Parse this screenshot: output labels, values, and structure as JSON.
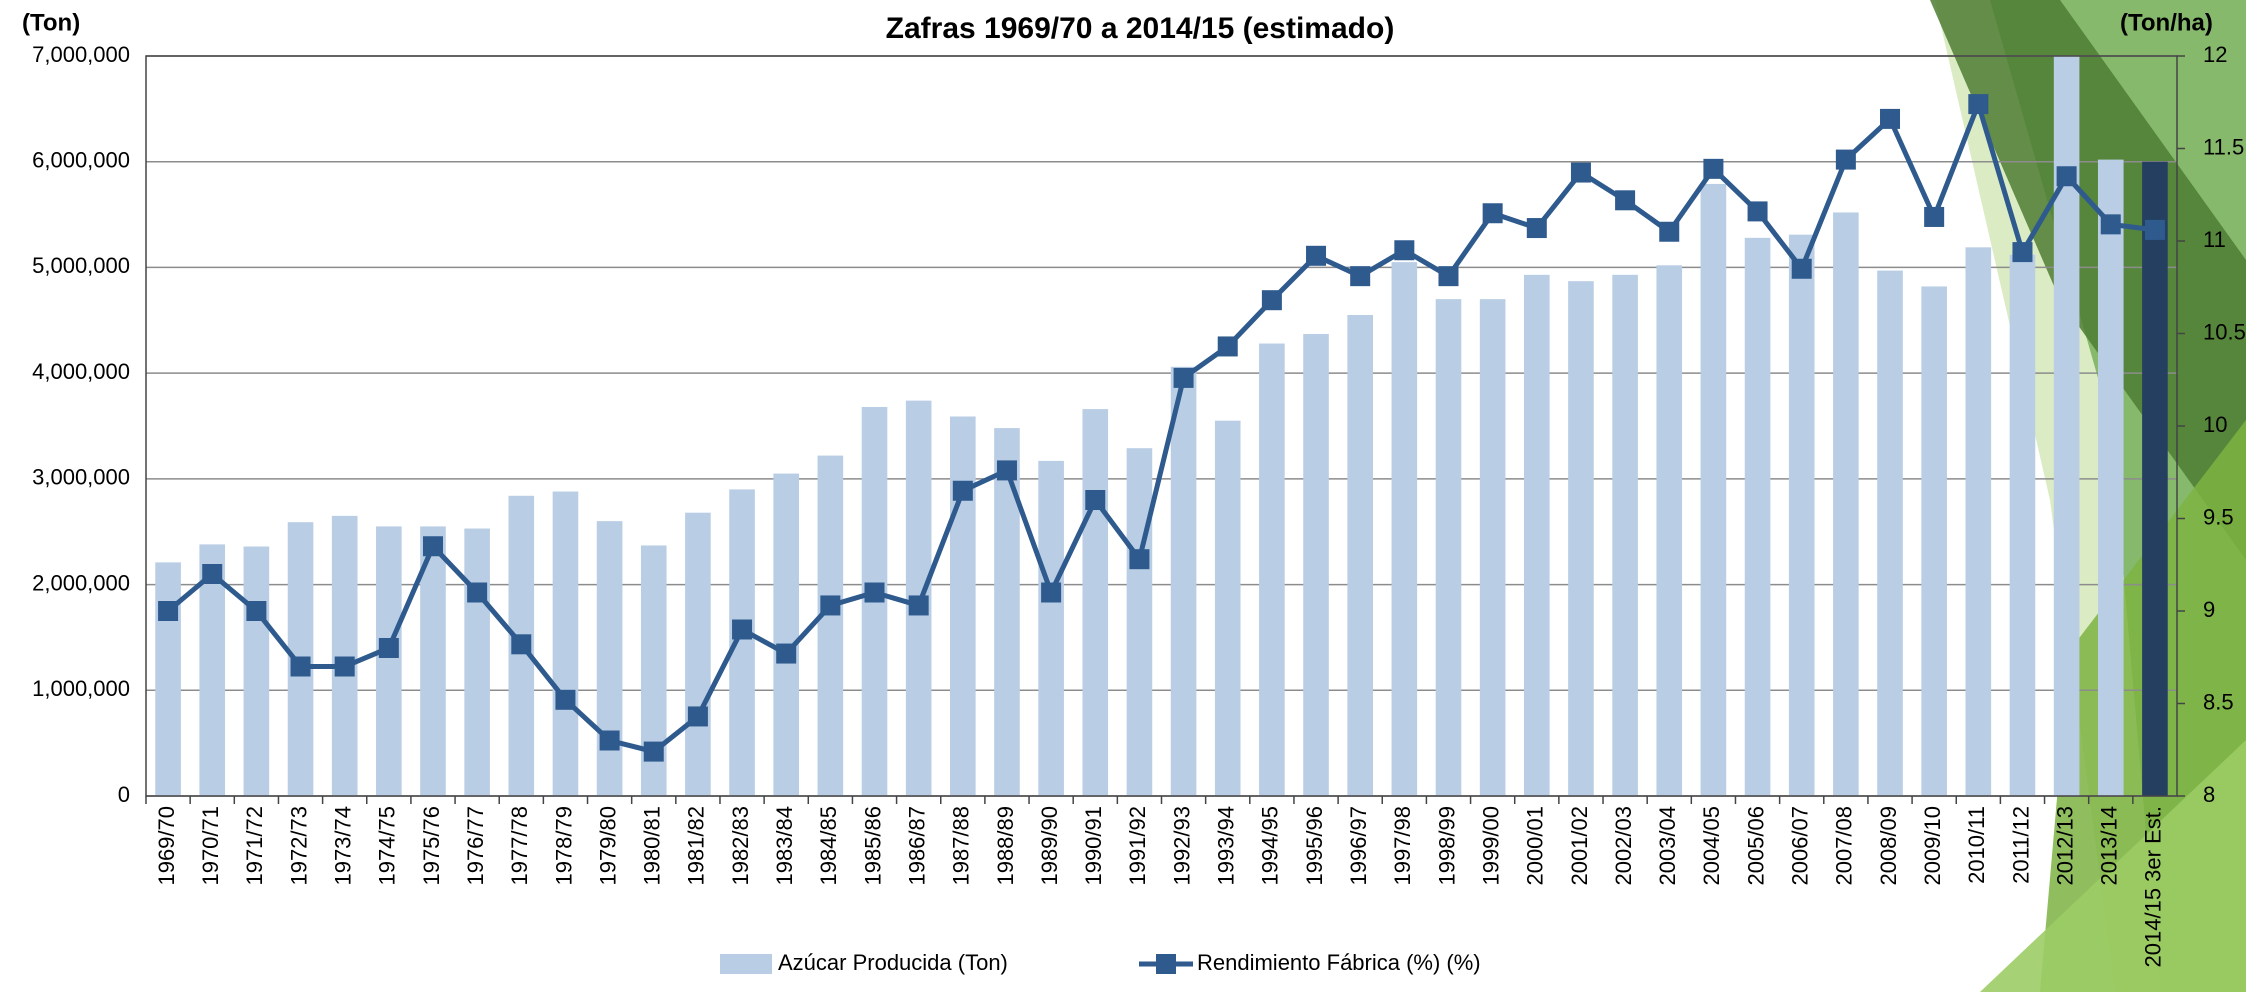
{
  "chart_data": {
    "type": "bar_line",
    "title": "Zafras 1969/70 a 2014/15 (estimado)",
    "y_label": "(Ton)",
    "y2_label": "(Ton/ha)",
    "categories": [
      "1969/70",
      "1970/71",
      "1971/72",
      "1972/73",
      "1973/74",
      "1974/75",
      "1975/76",
      "1976/77",
      "1977/78",
      "1978/79",
      "1979/80",
      "1980/81",
      "1981/82",
      "1982/83",
      "1983/84",
      "1984/85",
      "1985/86",
      "1986/87",
      "1987/88",
      "1988/89",
      "1989/90",
      "1990/91",
      "1991/92",
      "1992/93",
      "1993/94",
      "1994/95",
      "1995/96",
      "1996/97",
      "1997/98",
      "1998/99",
      "1999/00",
      "2000/01",
      "2001/02",
      "2002/03",
      "2003/04",
      "2004/05",
      "2005/06",
      "2006/07",
      "2007/08",
      "2008/09",
      "2009/10",
      "2010/11",
      "2011/12",
      "2012/13",
      "2013/14",
      "2014/15 3er Est."
    ],
    "series": [
      {
        "name": "Azúcar Producida (Ton)",
        "type": "bar",
        "color": "#b9cde5",
        "colors": [
          "#b9cde5",
          "#b9cde5",
          "#b9cde5",
          "#b9cde5",
          "#b9cde5",
          "#b9cde5",
          "#b9cde5",
          "#b9cde5",
          "#b9cde5",
          "#b9cde5",
          "#b9cde5",
          "#b9cde5",
          "#b9cde5",
          "#b9cde5",
          "#b9cde5",
          "#b9cde5",
          "#b9cde5",
          "#b9cde5",
          "#b9cde5",
          "#b9cde5",
          "#b9cde5",
          "#b9cde5",
          "#b9cde5",
          "#b9cde5",
          "#b9cde5",
          "#b9cde5",
          "#b9cde5",
          "#b9cde5",
          "#b9cde5",
          "#b9cde5",
          "#b9cde5",
          "#b9cde5",
          "#b9cde5",
          "#b9cde5",
          "#b9cde5",
          "#b9cde5",
          "#b9cde5",
          "#b9cde5",
          "#b9cde5",
          "#b9cde5",
          "#b9cde5",
          "#b9cde5",
          "#b9cde5",
          "#b9cde5",
          "#b9cde5",
          "#243f60"
        ],
        "values": [
          2210000,
          2380000,
          2360000,
          2590000,
          2650000,
          2550000,
          2550000,
          2530000,
          2840000,
          2880000,
          2600000,
          2370000,
          2680000,
          2900000,
          3050000,
          3220000,
          3680000,
          3740000,
          3590000,
          3480000,
          3170000,
          3660000,
          3290000,
          4060000,
          3550000,
          4280000,
          4370000,
          4550000,
          5050000,
          4700000,
          4700000,
          4930000,
          4870000,
          4930000,
          5020000,
          5790000,
          5280000,
          5310000,
          5520000,
          4970000,
          4820000,
          5190000,
          5120000,
          7000000,
          6020000,
          6000000
        ]
      },
      {
        "name": "Rendimiento Fábrica (%) (%)",
        "type": "line",
        "axis": "y2",
        "color": "#2e5a8e",
        "values": [
          9.0,
          9.2,
          9.0,
          8.7,
          8.7,
          8.8,
          9.35,
          9.1,
          8.82,
          8.52,
          8.3,
          8.24,
          8.43,
          8.9,
          8.77,
          9.03,
          9.1,
          9.03,
          9.65,
          9.76,
          9.1,
          9.6,
          9.28,
          10.26,
          10.43,
          10.68,
          10.92,
          10.81,
          10.95,
          10.81,
          11.15,
          11.07,
          11.37,
          11.22,
          11.05,
          11.39,
          11.16,
          10.85,
          11.44,
          11.66,
          11.13,
          11.74,
          10.94,
          11.35,
          11.09,
          11.06
        ]
      }
    ],
    "ylim": [
      0,
      7000000
    ],
    "yticks": [
      0,
      {
        "value": 1000000,
        "label": "1,000,000"
      },
      {
        "value": 2000000,
        "label": "2,000,000"
      },
      {
        "value": 3000000,
        "label": "3,000,000"
      },
      {
        "value": 4000000,
        "label": "4,000,000"
      },
      {
        "value": 5000000,
        "label": "5,000,000"
      },
      {
        "value": 6000000,
        "label": "6,000,000"
      },
      {
        "value": 7000000,
        "label": "7,000,000"
      }
    ],
    "y2lim": [
      8,
      12
    ],
    "y2ticks": [
      8,
      8.5,
      9,
      9.5,
      10,
      10.5,
      11,
      11.5,
      12
    ],
    "grid": true,
    "legend": "bottom"
  }
}
